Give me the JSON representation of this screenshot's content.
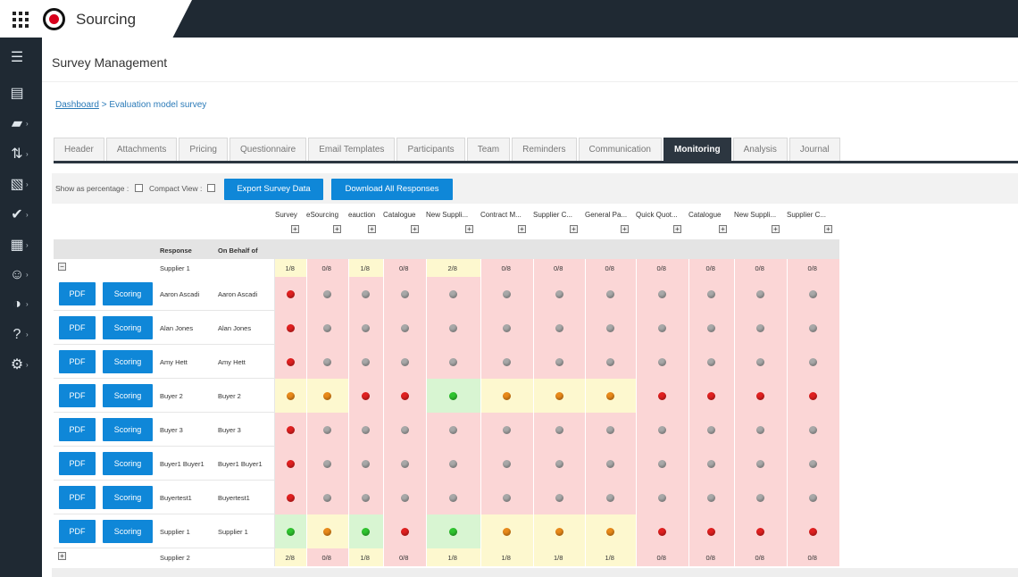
{
  "app": {
    "title": "Sourcing"
  },
  "page": {
    "title": "Survey Management"
  },
  "breadcrumb": {
    "link": "Dashboard",
    "separator": " > ",
    "current": "Evaluation model survey"
  },
  "sidebar": {
    "items": [
      {
        "name": "menu-icon",
        "glyph": "☰",
        "caret": false
      },
      {
        "name": "list-icon",
        "glyph": "▤",
        "caret": false
      },
      {
        "name": "folder-icon",
        "glyph": "▰",
        "caret": true
      },
      {
        "name": "transfer-icon",
        "glyph": "⇅",
        "caret": true
      },
      {
        "name": "document-icon",
        "glyph": "▧",
        "caret": true
      },
      {
        "name": "check-icon",
        "glyph": "✔",
        "caret": true
      },
      {
        "name": "catalog-icon",
        "glyph": "▦",
        "caret": true
      },
      {
        "name": "user-icon",
        "glyph": "☺",
        "caret": true
      },
      {
        "name": "chart-icon",
        "glyph": "◑",
        "caret": true
      },
      {
        "name": "help-icon",
        "glyph": "?",
        "caret": true
      },
      {
        "name": "gear-icon",
        "glyph": "⚙",
        "caret": true
      }
    ]
  },
  "tabs": [
    {
      "label": "Header"
    },
    {
      "label": "Attachments"
    },
    {
      "label": "Pricing"
    },
    {
      "label": "Questionnaire"
    },
    {
      "label": "Email Templates"
    },
    {
      "label": "Participants"
    },
    {
      "label": "Team"
    },
    {
      "label": "Reminders"
    },
    {
      "label": "Communication"
    },
    {
      "label": "Monitoring",
      "active": true
    },
    {
      "label": "Analysis"
    },
    {
      "label": "Journal"
    }
  ],
  "toolbar": {
    "show_percentage_label": "Show as percentage :",
    "compact_view_label": "Compact View :",
    "export_label": "Export Survey Data",
    "download_label": "Download All Responses"
  },
  "table": {
    "response_header": "Response",
    "behalf_header": "On Behalf of",
    "columns": [
      "Survey",
      "eSourcing",
      "eauction",
      "Catalogue",
      "New Suppli...",
      "Contract M...",
      "Supplier C...",
      "General Pa...",
      "Quick Quot...",
      "Catalogue",
      "New Suppli...",
      "Supplier C..."
    ],
    "pdf_label": "PDF",
    "scoring_label": "Scoring",
    "groups": [
      {
        "name": "Supplier 1",
        "expand_symbol": "−",
        "summary": [
          "1/8",
          "0/8",
          "1/8",
          "0/8",
          "2/8",
          "0/8",
          "0/8",
          "0/8",
          "0/8",
          "0/8",
          "0/8",
          "0/8"
        ],
        "rows": [
          {
            "response": "Aaron Ascadi",
            "behalf": "Aaron Ascadi",
            "dots": [
              "r",
              "g",
              "g",
              "g",
              "g",
              "g",
              "g",
              "g",
              "g",
              "g",
              "g",
              "g"
            ]
          },
          {
            "response": "Alan Jones",
            "behalf": "Alan Jones",
            "dots": [
              "r",
              "g",
              "g",
              "g",
              "g",
              "g",
              "g",
              "g",
              "g",
              "g",
              "g",
              "g"
            ]
          },
          {
            "response": "Amy Hett",
            "behalf": "Amy Hett",
            "dots": [
              "r",
              "g",
              "g",
              "g",
              "g",
              "g",
              "g",
              "g",
              "g",
              "g",
              "g",
              "g"
            ]
          },
          {
            "response": "Buyer 2",
            "behalf": "Buyer 2",
            "dots": [
              "o",
              "o",
              "r",
              "r",
              "G",
              "o",
              "o",
              "o",
              "r",
              "r",
              "r",
              "r"
            ]
          },
          {
            "response": "Buyer 3",
            "behalf": "Buyer 3",
            "dots": [
              "r",
              "g",
              "g",
              "g",
              "g",
              "g",
              "g",
              "g",
              "g",
              "g",
              "g",
              "g"
            ]
          },
          {
            "response": "Buyer1 Buyer1",
            "behalf": "Buyer1 Buyer1",
            "dots": [
              "r",
              "g",
              "g",
              "g",
              "g",
              "g",
              "g",
              "g",
              "g",
              "g",
              "g",
              "g"
            ]
          },
          {
            "response": "Buyertest1",
            "behalf": "Buyertest1",
            "dots": [
              "r",
              "g",
              "g",
              "g",
              "g",
              "g",
              "g",
              "g",
              "g",
              "g",
              "g",
              "g"
            ]
          },
          {
            "response": "Supplier 1",
            "behalf": "Supplier 1",
            "dots": [
              "G",
              "o",
              "G",
              "r",
              "G",
              "o",
              "o",
              "o",
              "r",
              "r",
              "r",
              "r"
            ]
          }
        ]
      },
      {
        "name": "Supplier 2",
        "expand_symbol": "+",
        "summary": [
          "2/8",
          "0/8",
          "1/8",
          "0/8",
          "1/8",
          "1/8",
          "1/8",
          "1/8",
          "0/8",
          "0/8",
          "0/8",
          "0/8"
        ],
        "rows": []
      }
    ]
  },
  "colors": {
    "cell_red": "#fbd6d6",
    "cell_yellow": "#fdf8cf",
    "cell_green": "#d8f5d2",
    "dot_red": "#e02020",
    "dot_grey": "#a8a8a8",
    "dot_orange": "#e8891a",
    "dot_green": "#2fc42f",
    "accent_blue": "#0f87d8"
  }
}
